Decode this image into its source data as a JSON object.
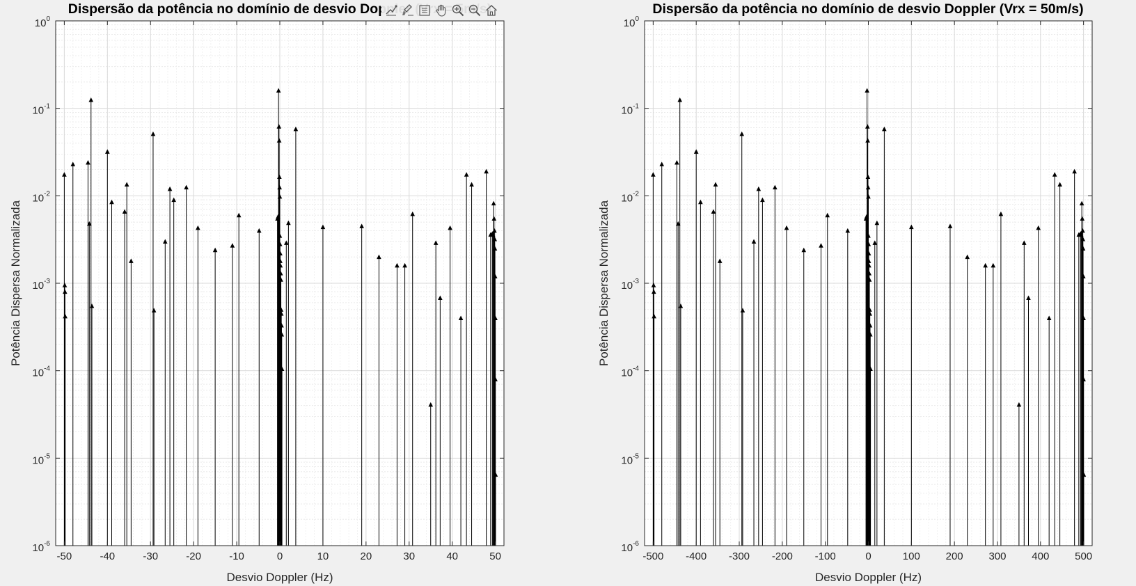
{
  "toolbar": {
    "buttons": [
      {
        "name": "data-tips-icon",
        "label": "Data tips"
      },
      {
        "name": "brush-icon",
        "label": "Brush"
      },
      {
        "name": "legend-icon",
        "label": "Legend"
      },
      {
        "name": "pan-icon",
        "label": "Pan"
      },
      {
        "name": "zoom-in-icon",
        "label": "Zoom in"
      },
      {
        "name": "zoom-out-icon",
        "label": "Zoom out"
      },
      {
        "name": "home-icon",
        "label": "Restore view"
      }
    ]
  },
  "chart_data": [
    {
      "type": "stem",
      "title": "Dispersão da potência no domínio de desvio Doppler (Vrx = 5m/s)",
      "xlabel": "Desvio Doppler (Hz)",
      "ylabel": "Potência Dispersa Normalizada",
      "xlim": [
        -52,
        52
      ],
      "ylim": [
        1e-06,
        1
      ],
      "yscale": "log",
      "grid": true,
      "minor_grid": true,
      "xticks": [
        -50,
        -40,
        -30,
        -20,
        -10,
        0,
        10,
        20,
        30,
        40,
        50
      ],
      "yticks": [
        {
          "base": "10",
          "exp": "-6"
        },
        {
          "base": "10",
          "exp": "-5"
        },
        {
          "base": "10",
          "exp": "-4"
        },
        {
          "base": "10",
          "exp": "-3"
        },
        {
          "base": "10",
          "exp": "-2"
        },
        {
          "base": "10",
          "exp": "-1"
        },
        {
          "base": "10",
          "exp": "0"
        }
      ],
      "marker": "^",
      "color": "#000000",
      "x": [
        -50.0,
        -49.9,
        -49.85,
        -49.8,
        -48.0,
        -44.5,
        -44.2,
        -43.8,
        -43.6,
        -40.0,
        -39.0,
        -36.0,
        -35.5,
        -34.5,
        -29.4,
        -29.2,
        -26.6,
        -25.5,
        -24.6,
        -21.7,
        -19.0,
        -15.0,
        -11.0,
        -9.5,
        -4.8,
        -0.55,
        -0.4,
        -0.3,
        -0.2,
        -0.15,
        -0.1,
        -0.05,
        0.0,
        0.0,
        0.05,
        0.1,
        0.1,
        0.15,
        0.2,
        0.25,
        0.3,
        0.35,
        0.4,
        0.45,
        0.5,
        1.5,
        2.0,
        3.7,
        10.0,
        19.0,
        23.0,
        27.2,
        29.0,
        30.8,
        35.0,
        36.2,
        37.2,
        39.5,
        42.0,
        43.3,
        44.5,
        47.9,
        48.9,
        49.3,
        49.45,
        49.6,
        49.7,
        49.8,
        49.85,
        49.9,
        49.95,
        50.0,
        50.0,
        50.05
      ],
      "y": [
        0.0175,
        0.00095,
        0.0008,
        0.00042,
        0.023,
        0.024,
        0.0048,
        0.125,
        0.00055,
        0.032,
        0.0085,
        0.0066,
        0.0135,
        0.0018,
        0.051,
        0.00049,
        0.003,
        0.012,
        0.009,
        0.0125,
        0.0043,
        0.0024,
        0.0027,
        0.006,
        0.004,
        0.0055,
        0.0058,
        0.16,
        0.062,
        0.043,
        0.0165,
        0.0125,
        0.0098,
        0.0035,
        0.0028,
        0.0022,
        0.0018,
        0.0016,
        0.0013,
        0.0011,
        0.0005,
        0.00045,
        0.00033,
        0.00026,
        0.000105,
        0.0029,
        0.0049,
        0.058,
        0.0044,
        0.0045,
        0.002,
        0.0016,
        0.0016,
        0.0062,
        4.1e-05,
        0.0029,
        0.00068,
        0.0043,
        0.0004,
        0.0175,
        0.0135,
        0.019,
        0.0036,
        0.0037,
        0.0036,
        0.0082,
        0.0055,
        0.004,
        0.0032,
        0.0025,
        0.0012,
        0.0004,
        8e-05,
        6.5e-06
      ]
    },
    {
      "type": "stem",
      "title": "Dispersão da potência no domínio de desvio Doppler (Vrx = 50m/s)",
      "xlabel": "Desvio Doppler (Hz)",
      "ylabel": "Potência Dispersa Normalizada",
      "xlim": [
        -520,
        520
      ],
      "ylim": [
        1e-06,
        1
      ],
      "yscale": "log",
      "grid": true,
      "minor_grid": true,
      "xticks": [
        -500,
        -400,
        -300,
        -200,
        -100,
        0,
        100,
        200,
        300,
        400,
        500
      ],
      "yticks": [
        {
          "base": "10",
          "exp": "-6"
        },
        {
          "base": "10",
          "exp": "-5"
        },
        {
          "base": "10",
          "exp": "-4"
        },
        {
          "base": "10",
          "exp": "-3"
        },
        {
          "base": "10",
          "exp": "-2"
        },
        {
          "base": "10",
          "exp": "-1"
        },
        {
          "base": "10",
          "exp": "0"
        }
      ],
      "marker": "^",
      "color": "#000000",
      "x": [
        -500.0,
        -499.0,
        -498.5,
        -498.0,
        -480.0,
        -445.0,
        -442.0,
        -438.0,
        -436.0,
        -400.0,
        -390.0,
        -360.0,
        -355.0,
        -345.0,
        -294.0,
        -292.0,
        -266.0,
        -255.0,
        -246.0,
        -217.0,
        -190.0,
        -150.0,
        -110.0,
        -95.0,
        -48.0,
        -5.5,
        -4.0,
        -3.0,
        -2.0,
        -1.5,
        -1.0,
        -0.5,
        0.0,
        0.0,
        0.5,
        1.0,
        1.0,
        1.5,
        2.0,
        2.5,
        3.0,
        3.5,
        4.0,
        4.5,
        5.0,
        15.0,
        20.0,
        37.0,
        100.0,
        190.0,
        230.0,
        272.0,
        290.0,
        308.0,
        350.0,
        362.0,
        372.0,
        395.0,
        420.0,
        433.0,
        445.0,
        479.0,
        489.0,
        493.0,
        494.5,
        496.0,
        497.0,
        498.0,
        498.5,
        499.0,
        499.5,
        500.0,
        500.0,
        500.5
      ],
      "y": [
        0.0175,
        0.00095,
        0.0008,
        0.00042,
        0.023,
        0.024,
        0.0048,
        0.125,
        0.00055,
        0.032,
        0.0085,
        0.0066,
        0.0135,
        0.0018,
        0.051,
        0.00049,
        0.003,
        0.012,
        0.009,
        0.0125,
        0.0043,
        0.0024,
        0.0027,
        0.006,
        0.004,
        0.0055,
        0.0058,
        0.16,
        0.062,
        0.043,
        0.0165,
        0.0125,
        0.0098,
        0.0035,
        0.0028,
        0.0022,
        0.0018,
        0.0016,
        0.0013,
        0.0011,
        0.0005,
        0.00045,
        0.00033,
        0.00026,
        0.000105,
        0.0029,
        0.0049,
        0.058,
        0.0044,
        0.0045,
        0.002,
        0.0016,
        0.0016,
        0.0062,
        4.1e-05,
        0.0029,
        0.00068,
        0.0043,
        0.0004,
        0.0175,
        0.0135,
        0.019,
        0.0036,
        0.0037,
        0.0036,
        0.0082,
        0.0055,
        0.004,
        0.0032,
        0.0025,
        0.0012,
        0.0004,
        8e-05,
        6.5e-06
      ]
    }
  ]
}
